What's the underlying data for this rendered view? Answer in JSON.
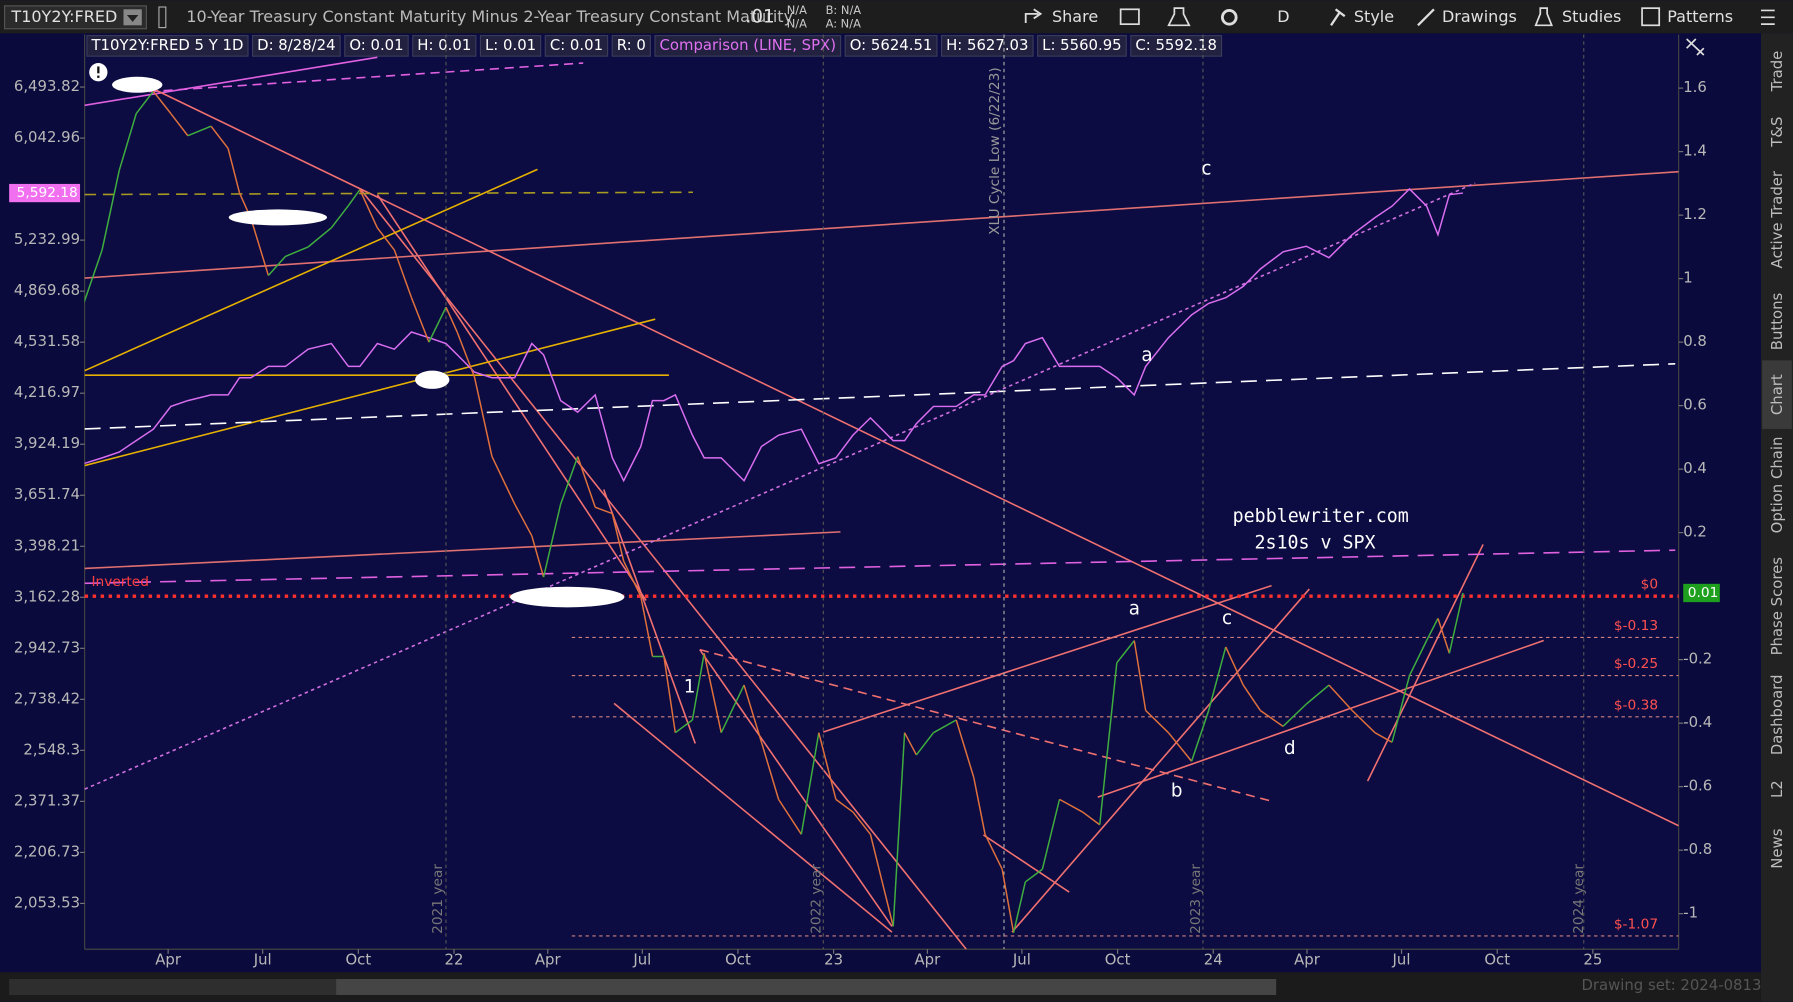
{
  "toolbar": {
    "symbol": "T10Y2Y:FRED",
    "description": "10-Year Treasury Constant Maturity Minus 2-Year Treasury Constant Maturity",
    "last": ".01",
    "bid": "N/A",
    "ask": "N/A",
    "bid_small": "B: N/A",
    "ask_small": "A: N/A",
    "share": "Share",
    "aggregation": "D",
    "style": "Style",
    "drawings": "Drawings",
    "studies": "Studies",
    "patterns": "Patterns"
  },
  "legend": [
    "T10Y2Y:FRED 5 Y 1D",
    "D: 8/28/24",
    "O: 0.01",
    "H: 0.01",
    "L: 0.01",
    "C: 0.01",
    "R: 0",
    "Comparison (LINE, SPX)",
    "O: 5624.51",
    "H: 5627.03",
    "L: 5560.95",
    "C: 5592.18"
  ],
  "side_tabs": [
    "Trade",
    "T&S",
    "Active Trader",
    "Buttons",
    "Chart",
    "Option Chain",
    "Phase Scores",
    "Dashboard",
    "L2",
    "News"
  ],
  "footer": {
    "drawing_set": "Drawing set: 2024-0813"
  },
  "chart_data": {
    "type": "line",
    "x": [
      2021.024,
      2021.073,
      2021.118,
      2021.163,
      2021.208,
      2021.254,
      2021.299,
      2021.36,
      2021.405,
      2021.435,
      2021.465,
      2021.511,
      2021.556,
      2021.616,
      2021.677,
      2021.722,
      2021.752,
      2021.798,
      2021.843,
      2021.888,
      2021.934,
      2021.979,
      2022.009,
      2022.054,
      2022.1,
      2022.16,
      2022.205,
      2022.236,
      2022.281,
      2022.326,
      2022.372,
      2022.417,
      2022.447,
      2022.492,
      2022.523,
      2022.553,
      2022.583,
      2022.628,
      2022.659,
      2022.704,
      2022.764,
      2022.81,
      2022.855,
      2022.915,
      2022.961,
      2023.006,
      2023.051,
      2023.097,
      2023.157,
      2023.187,
      2023.218,
      2023.263,
      2023.323,
      2023.369,
      2023.399,
      2023.444,
      2023.474,
      2023.505,
      2023.55,
      2023.595,
      2023.656,
      2023.701,
      2023.746,
      2023.792,
      2023.822,
      2023.882,
      2023.943,
      2023.988,
      2024.033,
      2024.079,
      2024.124,
      2024.184,
      2024.245,
      2024.305,
      2024.366,
      2024.426,
      2024.471,
      2024.517,
      2024.562,
      2024.592,
      2024.622,
      2024.658
    ],
    "xlim": [
      2021.027,
      2025.226
    ],
    "xticks": [
      {
        "value": 2021.247,
        "label": "Apr"
      },
      {
        "value": 2021.496,
        "label": "Jul"
      },
      {
        "value": 2021.748,
        "label": "Oct"
      },
      {
        "value": 2022,
        "label": "22"
      },
      {
        "value": 2022.247,
        "label": "Apr"
      },
      {
        "value": 2022.496,
        "label": "Jul"
      },
      {
        "value": 2022.748,
        "label": "Oct"
      },
      {
        "value": 2023,
        "label": "23"
      },
      {
        "value": 2023.247,
        "label": "Apr"
      },
      {
        "value": 2023.496,
        "label": "Jul"
      },
      {
        "value": 2023.748,
        "label": "Oct"
      },
      {
        "value": 2024,
        "label": "24"
      },
      {
        "value": 2024.247,
        "label": "Apr"
      },
      {
        "value": 2024.496,
        "label": "Jul"
      },
      {
        "value": 2024.748,
        "label": "Oct"
      },
      {
        "value": 2025,
        "label": "25"
      }
    ],
    "ylim": [
      1925,
      6994
    ],
    "log_scale": true,
    "yticks": [
      {
        "value": 6493.82,
        "label": "6,493.82"
      },
      {
        "value": 6042.96,
        "label": "6,042.96"
      },
      {
        "value": 5232.99,
        "label": "5,232.99"
      },
      {
        "value": 4869.68,
        "label": "4,869.68"
      },
      {
        "value": 4531.58,
        "label": "4,531.58"
      },
      {
        "value": 4216.97,
        "label": "4,216.97"
      },
      {
        "value": 3924.19,
        "label": "3,924.19"
      },
      {
        "value": 3651.74,
        "label": "3,651.74"
      },
      {
        "value": 3398.21,
        "label": "3,398.21"
      },
      {
        "value": 3162.28,
        "label": "3,162.28"
      },
      {
        "value": 2942.73,
        "label": "2,942.73"
      },
      {
        "value": 2738.42,
        "label": "2,738.42"
      },
      {
        "value": 2548.3,
        "label": "2,548.3"
      },
      {
        "value": 2371.37,
        "label": "2,371.37"
      },
      {
        "value": 2206.73,
        "label": "2,206.73"
      },
      {
        "value": 2053.53,
        "label": "2,053.53"
      }
    ],
    "y2lim": [
      -1.112,
      1.769
    ],
    "y2ticks": [
      1.6,
      1.4,
      1.2,
      1,
      0.8,
      0.6,
      0.4,
      0.2,
      -0.2,
      -0.4,
      -0.6,
      -0.8,
      -1
    ],
    "series": [
      {
        "color": "#d96ef0",
        "values": [
          3818,
          3849,
          3881,
          3944,
          4008,
          4139,
          4173,
          4207,
          4207,
          4310,
          4310,
          4379,
          4379,
          4487,
          4523,
          4379,
          4379,
          4523,
          4487,
          4597,
          4560,
          4523,
          4451,
          4344,
          4310,
          4310,
          4523,
          4451,
          4173,
          4106,
          4207,
          3849,
          3727,
          3912,
          4173,
          4173,
          4207,
          3975,
          3849,
          3849,
          3727,
          3912,
          3975,
          4008,
          3818,
          3849,
          3975,
          4073,
          3944,
          3944,
          4040,
          4139,
          4139,
          4207,
          4207,
          4379,
          4415,
          4523,
          4560,
          4379,
          4379,
          4379,
          4310,
          4207,
          4379,
          4560,
          4710,
          4786,
          4825,
          4903,
          5024,
          5147,
          5188,
          5105,
          5273,
          5402,
          5490,
          5625,
          5490,
          5273,
          5580,
          5592.18
        ],
        "last_label": "5,592.18",
        "label_color": "#f070f0"
      },
      {
        "axis": "y2",
        "color": "#3fae3f",
        "down_color": "#e0703c",
        "values": [
          0.92,
          1.09,
          1.34,
          1.52,
          1.59,
          1.52,
          1.45,
          1.48,
          1.41,
          1.27,
          1.19,
          1.01,
          1.07,
          1.1,
          1.16,
          1.23,
          1.28,
          1.16,
          1.09,
          0.94,
          0.8,
          0.91,
          0.83,
          0.69,
          0.44,
          0.29,
          0.19,
          0.06,
          0.29,
          0.44,
          0.28,
          0.26,
          0.11,
          0,
          -0.19,
          -0.19,
          -0.43,
          -0.39,
          -0.18,
          -0.43,
          -0.28,
          -0.46,
          -0.64,
          -0.75,
          -0.43,
          -0.64,
          -0.68,
          -0.75,
          -1.04,
          -0.43,
          -0.5,
          -0.43,
          -0.39,
          -0.57,
          -0.75,
          -0.86,
          -1.06,
          -0.9,
          -0.86,
          -0.64,
          -0.68,
          -0.72,
          -0.21,
          -0.14,
          -0.36,
          -0.43,
          -0.52,
          -0.36,
          -0.16,
          -0.28,
          -0.36,
          -0.41,
          -0.34,
          -0.28,
          -0.36,
          -0.43,
          -0.46,
          -0.25,
          -0.14,
          -0.07,
          -0.18,
          0.01
        ],
        "last_label": "0.01",
        "label_color": "#1ea01e"
      }
    ],
    "levels": [
      {
        "value": 0,
        "label": "$0"
      },
      {
        "value": -0.13,
        "label": "$-0.13"
      },
      {
        "value": -0.25,
        "label": "$-0.25"
      },
      {
        "value": -0.38,
        "label": "$-0.38"
      },
      {
        "value": -1.07,
        "label": "$-1.07"
      }
    ],
    "annotations": [
      "pebblewriter.com",
      "2s10s v SPX",
      "XLU Cycle Low (6/22/23)",
      "2021 year",
      "2022 year",
      "2023 year",
      "2024 year",
      "Inverted",
      "a",
      "b",
      "c",
      "d",
      "1",
      "a",
      "c"
    ]
  }
}
